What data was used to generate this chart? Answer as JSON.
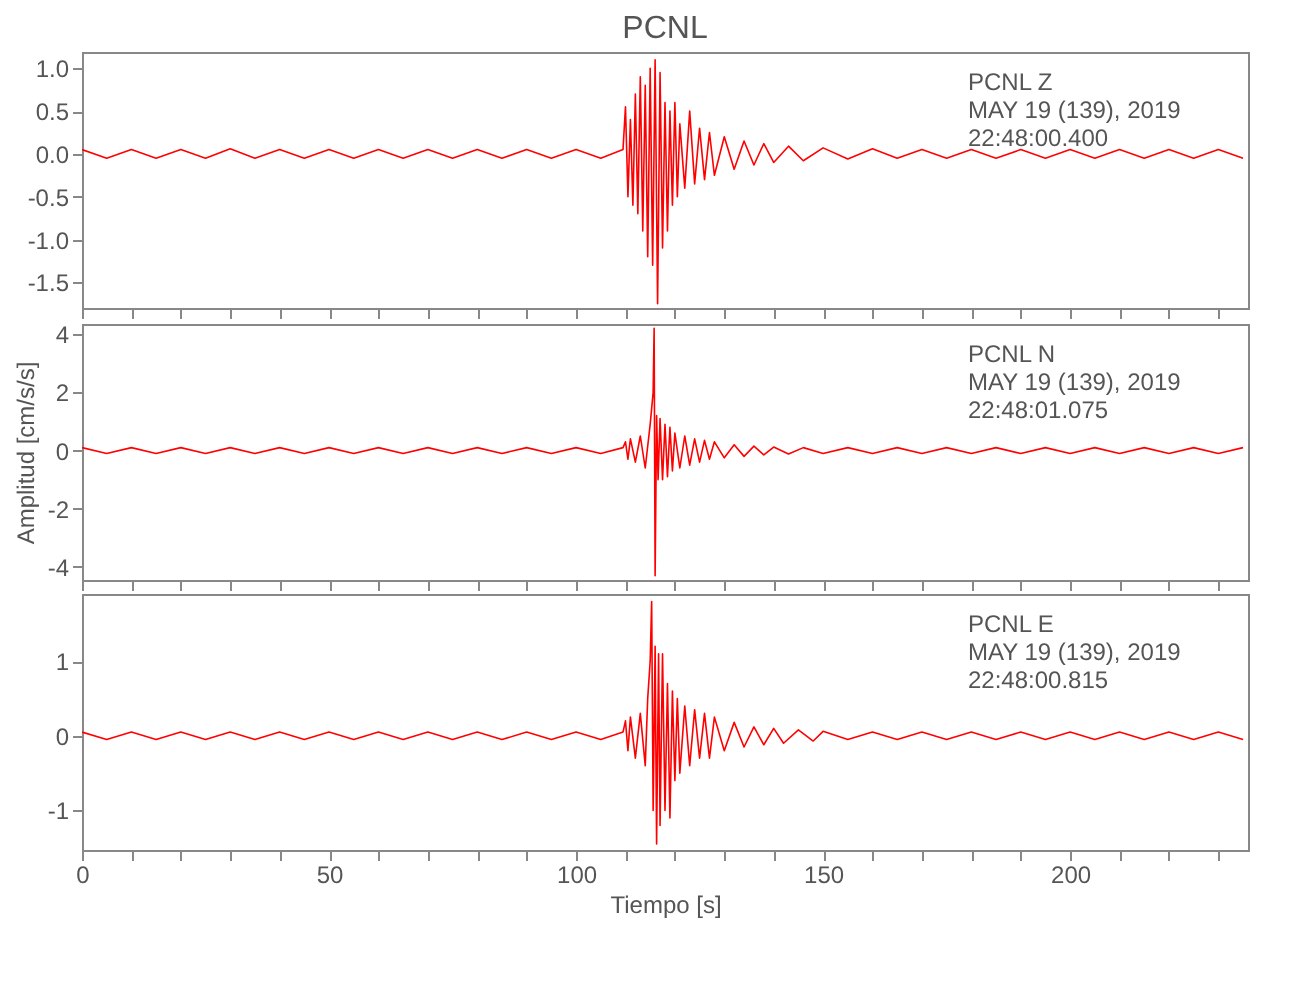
{
  "chart_data": [
    {
      "type": "line",
      "title": "PCNL",
      "annotations": [
        "PCNL   Z\nMAY 19 (139), 2019\n22:48:00.400"
      ],
      "tick_labels": "y",
      "grid": false,
      "xlim": [
        0,
        236
      ],
      "ylim": [
        -1.8,
        1.19
      ],
      "yticks": [
        -1.5,
        {
          "value": -1.0,
          "label": "-1.0"
        },
        -0.5,
        {
          "value": 0,
          "label": "0.0"
        },
        0.5,
        {
          "value": 1.0,
          "label": "1.0"
        }
      ],
      "xticks": [
        0,
        10,
        20,
        30,
        40,
        50,
        60,
        70,
        80,
        90,
        100,
        110,
        120,
        130,
        140,
        150,
        160,
        170,
        180,
        190,
        200,
        210,
        220,
        230
      ],
      "x": [
        0,
        5,
        10,
        15,
        20,
        25,
        30,
        35,
        40,
        45,
        50,
        55,
        60,
        65,
        70,
        75,
        80,
        85,
        90,
        95,
        100,
        105,
        109.5,
        110,
        110.5,
        111,
        111.5,
        112,
        112.5,
        113,
        113.5,
        114,
        114.5,
        115,
        115.5,
        116,
        116.5,
        117,
        117.5,
        118,
        118.5,
        119,
        119.5,
        120,
        120.5,
        121,
        122,
        123,
        124,
        125,
        126,
        127,
        128,
        130,
        132,
        134,
        136,
        138,
        140,
        143,
        146,
        150,
        155,
        160,
        165,
        170,
        175,
        180,
        185,
        190,
        195,
        200,
        205,
        210,
        215,
        220,
        225,
        230,
        235
      ],
      "series": [
        {
          "color": "#ff0000",
          "values": [
            0.05,
            -0.05,
            0.05,
            -0.05,
            0.05,
            -0.05,
            0.06,
            -0.05,
            0.05,
            -0.05,
            0.05,
            -0.05,
            0.05,
            -0.05,
            0.05,
            -0.05,
            0.05,
            -0.05,
            0.05,
            -0.05,
            0.05,
            -0.05,
            0.05,
            0.55,
            -0.5,
            0.4,
            -0.6,
            0.7,
            -0.7,
            0.9,
            -0.9,
            0.8,
            -1.2,
            1.0,
            -1.3,
            1.1,
            -1.75,
            0.95,
            -1.1,
            0.6,
            -0.9,
            0.5,
            -0.6,
            0.6,
            -0.5,
            0.35,
            -0.4,
            0.5,
            -0.35,
            0.3,
            -0.3,
            0.25,
            -0.25,
            0.2,
            -0.18,
            0.15,
            -0.13,
            0.12,
            -0.1,
            0.09,
            -0.08,
            0.07,
            -0.06,
            0.06,
            -0.05,
            0.05,
            -0.05,
            0.05,
            -0.05,
            0.05,
            -0.05,
            0.05,
            -0.05,
            0.05,
            -0.05,
            0.05,
            -0.05,
            0.05,
            -0.05
          ]
        }
      ]
    },
    {
      "type": "line",
      "ylabel": "Amplitud [cm/s/s]",
      "annotations": [
        "PCNL   N\nMAY 19 (139), 2019\n22:48:01.075"
      ],
      "tick_labels": "y",
      "grid": false,
      "xlim": [
        0,
        236
      ],
      "ylim": [
        -4.45,
        4.35
      ],
      "yticks": [
        -4,
        -2,
        0,
        2,
        4
      ],
      "xticks": [
        0,
        10,
        20,
        30,
        40,
        50,
        60,
        70,
        80,
        90,
        100,
        110,
        120,
        130,
        140,
        150,
        160,
        170,
        180,
        190,
        200,
        210,
        220,
        230
      ],
      "x": [
        0,
        5,
        10,
        15,
        20,
        25,
        30,
        35,
        40,
        45,
        50,
        55,
        60,
        65,
        70,
        75,
        80,
        85,
        90,
        95,
        100,
        105,
        109.5,
        110,
        110.5,
        111,
        112,
        113,
        114,
        115,
        115.6,
        115.8,
        116,
        116.3,
        116.6,
        117,
        117.5,
        118,
        118.5,
        119,
        119.5,
        120,
        121,
        122,
        123,
        124,
        125,
        126,
        127,
        128,
        130,
        132,
        134,
        136,
        138,
        140,
        143,
        146,
        150,
        155,
        160,
        165,
        170,
        175,
        180,
        185,
        190,
        195,
        200,
        205,
        210,
        215,
        220,
        225,
        230,
        235
      ],
      "series": [
        {
          "color": "#ff0000",
          "values": [
            0.1,
            -0.1,
            0.1,
            -0.1,
            0.1,
            -0.1,
            0.1,
            -0.1,
            0.1,
            -0.1,
            0.1,
            -0.1,
            0.1,
            -0.1,
            0.1,
            -0.1,
            0.1,
            -0.1,
            0.1,
            -0.1,
            0.1,
            -0.1,
            0.1,
            0.3,
            -0.3,
            0.4,
            -0.4,
            0.5,
            -0.6,
            0.9,
            2.0,
            4.2,
            -4.3,
            1.2,
            -1.0,
            1.1,
            -1.0,
            0.9,
            -0.9,
            0.8,
            -0.7,
            0.6,
            -0.6,
            0.5,
            -0.5,
            0.4,
            -0.4,
            0.35,
            -0.3,
            0.3,
            -0.25,
            0.2,
            -0.2,
            0.15,
            -0.15,
            0.12,
            -0.12,
            0.1,
            -0.1,
            0.1,
            -0.1,
            0.1,
            -0.1,
            0.1,
            -0.1,
            0.1,
            -0.1,
            0.1,
            -0.1,
            0.1,
            -0.1,
            0.1,
            -0.1,
            0.1,
            -0.1,
            0.1
          ]
        }
      ]
    },
    {
      "type": "line",
      "xlabel": "Tiempo [s]",
      "annotations": [
        "PCNL   E\nMAY 19 (139), 2019\n22:48:00.815"
      ],
      "grid": false,
      "xlim": [
        0,
        236
      ],
      "ylim": [
        -1.53,
        1.9
      ],
      "yticks": [
        -1,
        0,
        1
      ],
      "xticks": [
        0,
        {
          "value": 10,
          "label": null
        },
        {
          "value": 20,
          "label": null
        },
        {
          "value": 30,
          "label": null
        },
        {
          "value": 40,
          "label": null
        },
        50,
        {
          "value": 60,
          "label": null
        },
        {
          "value": 70,
          "label": null
        },
        {
          "value": 80,
          "label": null
        },
        {
          "value": 90,
          "label": null
        },
        100,
        {
          "value": 110,
          "label": null
        },
        {
          "value": 120,
          "label": null
        },
        {
          "value": 130,
          "label": null
        },
        {
          "value": 140,
          "label": null
        },
        150,
        {
          "value": 160,
          "label": null
        },
        {
          "value": 170,
          "label": null
        },
        {
          "value": 180,
          "label": null
        },
        {
          "value": 190,
          "label": null
        },
        200,
        {
          "value": 210,
          "label": null
        },
        {
          "value": 220,
          "label": null
        },
        {
          "value": 230,
          "label": null
        }
      ],
      "x": [
        0,
        5,
        10,
        15,
        20,
        25,
        30,
        35,
        40,
        45,
        50,
        55,
        60,
        65,
        70,
        75,
        80,
        85,
        90,
        95,
        100,
        105,
        109.5,
        110,
        110.5,
        111,
        112,
        113,
        114,
        114.5,
        115,
        115.3,
        115.6,
        116,
        116.3,
        116.7,
        117,
        117.5,
        118,
        118.5,
        119,
        119.5,
        120,
        120.5,
        121,
        122,
        123,
        124,
        125,
        126,
        127,
        128,
        130,
        132,
        134,
        136,
        138,
        140,
        142,
        145,
        148,
        150,
        155,
        160,
        165,
        170,
        175,
        180,
        185,
        190,
        195,
        200,
        205,
        210,
        215,
        220,
        225,
        230,
        235
      ],
      "series": [
        {
          "color": "#ff0000",
          "values": [
            0.05,
            -0.05,
            0.05,
            -0.05,
            0.05,
            -0.05,
            0.05,
            -0.05,
            0.05,
            -0.05,
            0.05,
            -0.05,
            0.05,
            -0.05,
            0.05,
            -0.05,
            0.05,
            -0.05,
            0.05,
            -0.05,
            0.05,
            -0.05,
            0.05,
            0.2,
            -0.2,
            0.25,
            -0.3,
            0.3,
            -0.4,
            0.5,
            1.0,
            1.8,
            -1.0,
            1.2,
            -1.45,
            1.1,
            -1.2,
            1.1,
            -1.0,
            0.7,
            -1.1,
            0.6,
            -0.6,
            0.5,
            -0.5,
            0.4,
            -0.4,
            0.35,
            -0.3,
            0.3,
            -0.3,
            0.25,
            -0.2,
            0.18,
            -0.15,
            0.12,
            -0.12,
            0.1,
            -0.1,
            0.08,
            -0.07,
            0.06,
            -0.05,
            0.05,
            -0.05,
            0.05,
            -0.05,
            0.05,
            -0.05,
            0.05,
            -0.05,
            0.05,
            -0.05,
            0.05,
            -0.05,
            0.05,
            -0.05,
            0.05,
            -0.05
          ]
        }
      ]
    }
  ]
}
